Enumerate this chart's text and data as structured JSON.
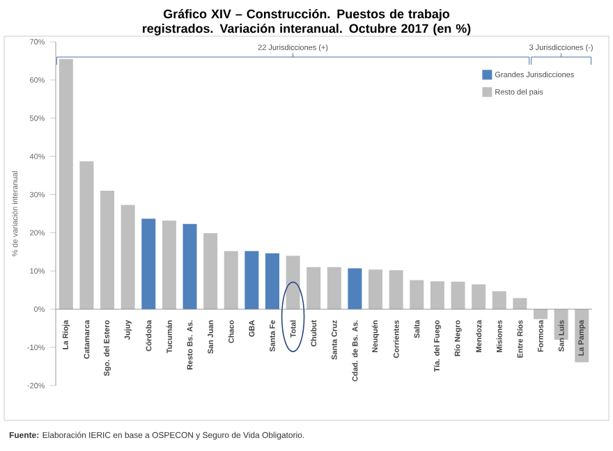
{
  "chart_data": {
    "type": "bar",
    "title": "Gráfico XIV – Construcción. Puestos de trabajo registrados. Variación interanual. Octubre 2017 (en %)",
    "ylabel": "% de variación interanual",
    "categories": [
      "La Rioja",
      "Catamarca",
      "Sgo. del Estero",
      "Jujuy",
      "Córdoba",
      "Tucumán",
      "Resto Bs. As.",
      "San Juan",
      "Chaco",
      "GBA",
      "Santa Fe",
      "Total",
      "Chubut",
      "Santa Cruz",
      "Cdad. de Bs. As.",
      "Neuquén",
      "Corrientes",
      "Salta",
      "Tía. del Fuego",
      "Río Negro",
      "Mendoza",
      "Misiones",
      "Entre Ríos",
      "Formosa",
      "San Luis",
      "La Pampa"
    ],
    "series": [
      {
        "name": "Grandes Jurisdicciones",
        "color": "#4f81bd",
        "values": [
          null,
          null,
          null,
          null,
          23.7,
          null,
          22.3,
          null,
          null,
          15.2,
          14.6,
          null,
          null,
          null,
          10.7,
          null,
          null,
          null,
          null,
          null,
          null,
          null,
          null,
          null,
          null,
          null
        ]
      },
      {
        "name": "Resto del pais",
        "color": "#bfbfbf",
        "values": [
          65.5,
          38.7,
          31.0,
          27.3,
          null,
          23.2,
          null,
          19.9,
          15.2,
          null,
          null,
          14.0,
          11.0,
          11.0,
          null,
          10.4,
          10.2,
          7.6,
          7.3,
          7.2,
          6.5,
          4.7,
          2.9,
          -2.6,
          -8.0,
          -13.9
        ]
      }
    ],
    "ylim": [
      -20,
      70
    ],
    "yticks": [
      {
        "value": -20,
        "label": "-20%"
      },
      {
        "value": -10,
        "label": "-10%"
      },
      {
        "value": 0,
        "label": "0%"
      },
      {
        "value": 10,
        "label": "10%"
      },
      {
        "value": 20,
        "label": "20%"
      },
      {
        "value": 30,
        "label": "30%"
      },
      {
        "value": 40,
        "label": "40%"
      },
      {
        "value": 50,
        "label": "50%"
      },
      {
        "value": 60,
        "label": "60%"
      },
      {
        "value": 70,
        "label": "70%"
      }
    ],
    "legend": "top right",
    "annotations": [
      "22 Jurisdicciones (+)",
      "3 Jurisdicciones (-)",
      "**Fuente:** Elaboración IERIC en base a OSPECON y Seguro de Vida Obligatorio."
    ]
  }
}
